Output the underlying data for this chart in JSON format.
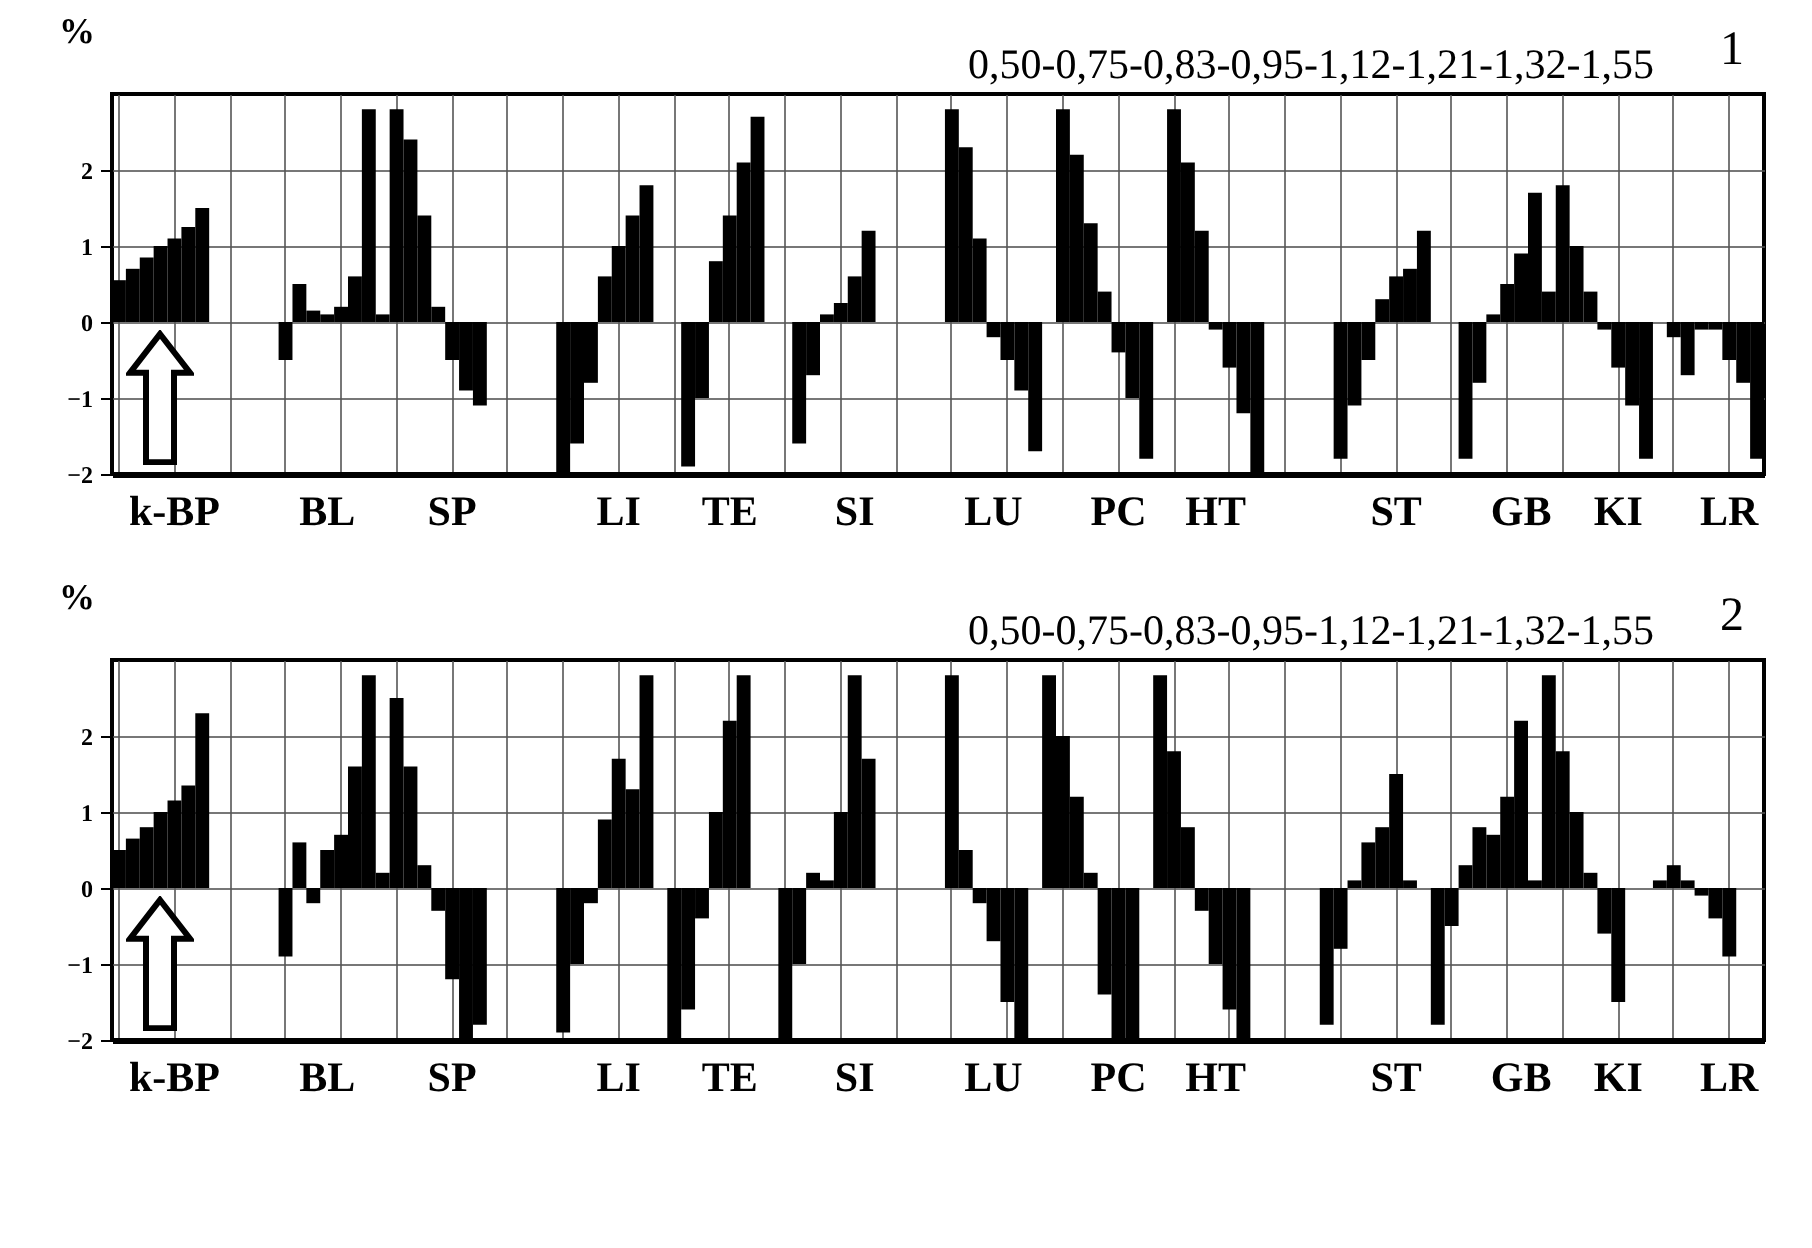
{
  "chart_data": [
    {
      "type": "bar",
      "title": "1",
      "ylabel": "%",
      "annotations": [
        "0,50-0,75-0,83-0,95-1,12-1,21-1,32-1,55"
      ],
      "color": "#000000",
      "ylim": [
        -2,
        3
      ],
      "yticks": [
        -2,
        -1,
        0,
        1,
        2
      ],
      "grid": true,
      "categories": [
        null,
        null,
        null,
        null,
        "k-BP",
        null,
        null,
        null,
        null,
        null,
        null,
        null,
        null,
        null,
        null,
        "BL",
        null,
        null,
        null,
        null,
        null,
        null,
        null,
        null,
        "SP",
        null,
        null,
        null,
        null,
        null,
        null,
        null,
        null,
        null,
        null,
        null,
        "LI",
        null,
        null,
        null,
        null,
        null,
        null,
        null,
        "TE",
        null,
        null,
        null,
        null,
        null,
        null,
        null,
        null,
        "SI",
        null,
        null,
        null,
        null,
        null,
        null,
        null,
        null,
        null,
        "LU",
        null,
        null,
        null,
        null,
        null,
        null,
        null,
        null,
        "PC",
        null,
        null,
        null,
        null,
        null,
        null,
        "HT",
        null,
        null,
        null,
        null,
        null,
        null,
        null,
        null,
        null,
        null,
        null,
        null,
        "ST",
        null,
        null,
        null,
        null,
        null,
        null,
        null,
        null,
        "GB",
        null,
        null,
        null,
        null,
        null,
        null,
        "KI",
        null,
        null,
        null,
        null,
        null,
        null,
        null,
        "LR",
        null,
        null
      ],
      "values": [
        0.55,
        0.7,
        0.85,
        1.0,
        1.1,
        1.25,
        1.5,
        null,
        null,
        null,
        null,
        null,
        -0.5,
        0.5,
        0.15,
        0.1,
        0.2,
        0.6,
        2.8,
        0.1,
        2.8,
        2.4,
        1.4,
        0.2,
        -0.5,
        -0.9,
        -1.1,
        null,
        null,
        null,
        null,
        null,
        -2.0,
        -1.6,
        -0.8,
        0.6,
        1.0,
        1.4,
        1.8,
        null,
        null,
        -1.9,
        -1.0,
        0.8,
        1.4,
        2.1,
        2.7,
        null,
        null,
        -1.6,
        -0.7,
        0.1,
        0.25,
        0.6,
        1.2,
        null,
        null,
        null,
        null,
        null,
        2.8,
        2.3,
        1.1,
        -0.2,
        -0.5,
        -0.9,
        -1.7,
        null,
        2.8,
        2.2,
        1.3,
        0.4,
        -0.4,
        -1.0,
        -1.8,
        null,
        2.8,
        2.1,
        1.2,
        -0.1,
        -0.6,
        -1.2,
        -2.0,
        null,
        null,
        null,
        null,
        null,
        -1.8,
        -1.1,
        -0.5,
        0.3,
        0.6,
        0.7,
        1.2,
        null,
        null,
        -1.8,
        -0.8,
        0.1,
        0.5,
        0.9,
        1.7,
        0.4,
        1.8,
        1.0,
        0.4,
        -0.1,
        -0.6,
        -1.1,
        -1.8,
        null,
        -0.2,
        -0.7,
        -0.1,
        -0.1,
        -0.5,
        -0.8,
        -1.8
      ]
    },
    {
      "type": "bar",
      "title": "2",
      "ylabel": "%",
      "annotations": [
        "0,50-0,75-0,83-0,95-1,12-1,21-1,32-1,55"
      ],
      "color": "#000000",
      "ylim": [
        -2,
        3
      ],
      "yticks": [
        -2,
        -1,
        0,
        1,
        2
      ],
      "grid": true,
      "categories": [
        null,
        null,
        null,
        null,
        "k-BP",
        null,
        null,
        null,
        null,
        null,
        null,
        null,
        null,
        null,
        null,
        "BL",
        null,
        null,
        null,
        null,
        null,
        null,
        null,
        null,
        "SP",
        null,
        null,
        null,
        null,
        null,
        null,
        null,
        null,
        null,
        null,
        null,
        "LI",
        null,
        null,
        null,
        null,
        null,
        null,
        null,
        "TE",
        null,
        null,
        null,
        null,
        null,
        null,
        null,
        null,
        "SI",
        null,
        null,
        null,
        null,
        null,
        null,
        null,
        null,
        null,
        "LU",
        null,
        null,
        null,
        null,
        null,
        null,
        null,
        null,
        "PC",
        null,
        null,
        null,
        null,
        null,
        null,
        "HT",
        null,
        null,
        null,
        null,
        null,
        null,
        null,
        null,
        null,
        null,
        null,
        null,
        "ST",
        null,
        null,
        null,
        null,
        null,
        null,
        null,
        null,
        "GB",
        null,
        null,
        null,
        null,
        null,
        null,
        "KI",
        null,
        null,
        null,
        null,
        null,
        null,
        null,
        "LR",
        null,
        null
      ],
      "values": [
        0.5,
        0.65,
        0.8,
        1.0,
        1.15,
        1.35,
        2.3,
        null,
        null,
        null,
        null,
        null,
        -0.9,
        0.6,
        -0.2,
        0.5,
        0.7,
        1.6,
        2.8,
        0.2,
        2.5,
        1.6,
        0.3,
        -0.3,
        -1.2,
        -2.0,
        -1.8,
        null,
        null,
        null,
        null,
        null,
        -1.9,
        -1.0,
        -0.2,
        0.9,
        1.7,
        1.3,
        2.8,
        null,
        -2.0,
        -1.6,
        -0.4,
        1.0,
        2.2,
        2.8,
        null,
        null,
        -2.0,
        -1.0,
        0.2,
        0.1,
        1.0,
        2.8,
        1.7,
        null,
        null,
        null,
        null,
        null,
        2.8,
        0.5,
        -0.2,
        -0.7,
        -1.5,
        -2.0,
        null,
        2.8,
        2.0,
        1.2,
        0.2,
        -1.4,
        -2.0,
        -2.0,
        null,
        2.8,
        1.8,
        0.8,
        -0.3,
        -1.0,
        -1.6,
        -2.0,
        null,
        null,
        null,
        null,
        null,
        -1.8,
        -0.8,
        0.1,
        0.6,
        0.8,
        1.5,
        0.1,
        null,
        -1.8,
        -0.5,
        0.3,
        0.8,
        0.7,
        1.2,
        2.2,
        0.1,
        2.8,
        1.8,
        1.0,
        0.2,
        -0.6,
        -1.5,
        null,
        null,
        0.1,
        0.3,
        0.1,
        -0.1,
        -0.4,
        -0.9,
        null,
        null
      ]
    }
  ]
}
